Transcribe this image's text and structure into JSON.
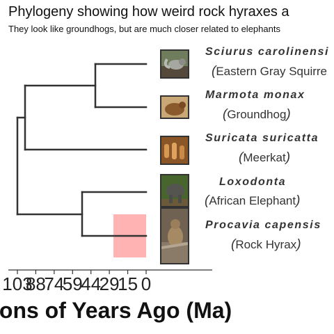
{
  "title": "Phylogeny showing how weird rock hyraxes a",
  "subtitle": "They look like groundhogs, but are much closer related to elephants",
  "taxa": [
    {
      "scientific": "Sciurus carolinensi",
      "common": "Eastern Gray Squirre",
      "open": "(",
      "close": ""
    },
    {
      "scientific": "Marmota monax",
      "common": "Groundhog",
      "open": "(",
      "close": ")"
    },
    {
      "scientific": "Suricata suricatta",
      "common": "Meerkat",
      "open": "(",
      "close": ")"
    },
    {
      "scientific": "Loxodonta",
      "common": "African Elephant",
      "open": "(",
      "close": ")"
    },
    {
      "scientific": "Procavia capensis",
      "common": "Rock Hyrax",
      "open": "(",
      "close": ")"
    }
  ],
  "axis": {
    "label": "ions of Years Ago (Ma)",
    "ticks": [
      "103",
      "88",
      "74",
      "59",
      "44",
      "29",
      "15",
      "0"
    ]
  },
  "colors": {
    "branch": "#333333",
    "highlight": "#ffb3b3"
  }
}
